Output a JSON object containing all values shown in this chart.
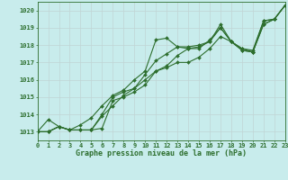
{
  "title": "Graphe pression niveau de la mer (hPa)",
  "bg_color": "#c8ecec",
  "grid_color": "#b8d8d8",
  "line_color": "#2d6e2d",
  "xlim": [
    0,
    23
  ],
  "ylim": [
    1012.5,
    1020.5
  ],
  "yticks": [
    1013,
    1014,
    1015,
    1016,
    1017,
    1018,
    1019,
    1020
  ],
  "xticks": [
    0,
    1,
    2,
    3,
    4,
    5,
    6,
    7,
    8,
    9,
    10,
    11,
    12,
    13,
    14,
    15,
    16,
    17,
    18,
    19,
    20,
    21,
    22,
    23
  ],
  "series": [
    [
      1013.0,
      1013.7,
      1013.3,
      1013.1,
      1013.1,
      1013.1,
      1013.2,
      1014.8,
      1015.0,
      1015.3,
      1015.7,
      1016.5,
      1016.7,
      1017.0,
      1017.0,
      1017.3,
      1017.8,
      1018.5,
      1018.2,
      1017.7,
      1017.6,
      1019.2,
      1019.5,
      1020.3
    ],
    [
      1013.0,
      1013.0,
      1013.3,
      1013.1,
      1013.4,
      1013.8,
      1014.5,
      1015.1,
      1015.4,
      1016.0,
      1016.5,
      1018.3,
      1018.4,
      1017.9,
      1017.8,
      1017.8,
      1018.3,
      1019.0,
      1018.2,
      1017.7,
      1017.6,
      1019.2,
      1019.5,
      1020.3
    ],
    [
      1013.0,
      1013.0,
      1013.3,
      1013.1,
      1013.1,
      1013.1,
      1013.9,
      1014.5,
      1015.1,
      1015.5,
      1016.3,
      1017.1,
      1017.5,
      1017.9,
      1017.9,
      1018.0,
      1018.2,
      1019.2,
      1018.2,
      1017.8,
      1017.6,
      1019.4,
      1019.5,
      1020.3
    ],
    [
      1013.0,
      1013.0,
      1013.3,
      1013.1,
      1013.1,
      1013.1,
      1014.0,
      1015.0,
      1015.3,
      1015.5,
      1016.0,
      1016.5,
      1016.8,
      1017.4,
      1017.8,
      1017.9,
      1018.2,
      1019.0,
      1018.2,
      1017.8,
      1017.7,
      1019.4,
      1019.5,
      1020.3
    ]
  ],
  "label_fontsize": 5.0,
  "title_fontsize": 6.0
}
